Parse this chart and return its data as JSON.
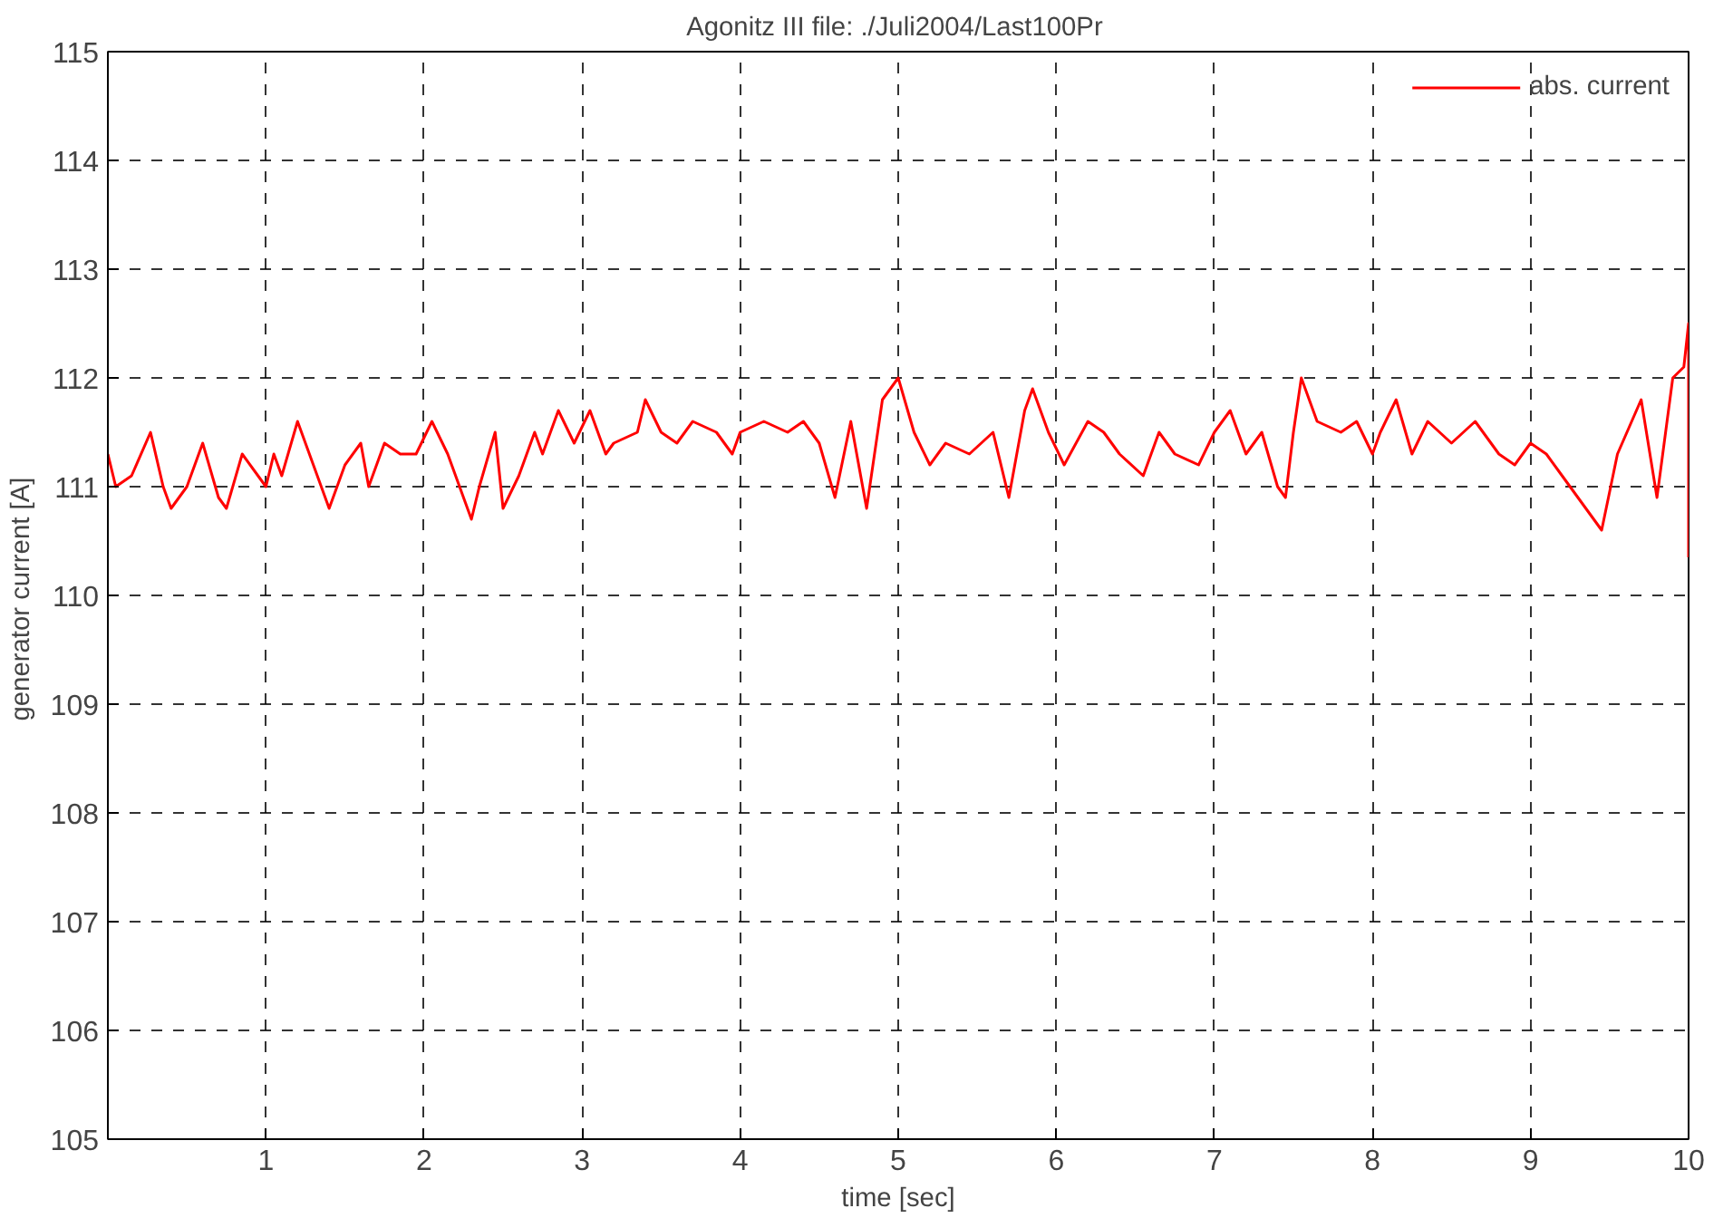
{
  "chart_data": {
    "type": "line",
    "title": "Agonitz III  file: ./Juli2004/Last100Pr",
    "xlabel": "time [sec]",
    "ylabel": "generator current  [A]",
    "xlim": [
      0,
      10
    ],
    "xticks": [
      1,
      2,
      3,
      4,
      5,
      6,
      7,
      8,
      9,
      10
    ],
    "ylim": [
      105,
      115
    ],
    "yticks": [
      105,
      106,
      107,
      108,
      109,
      110,
      111,
      112,
      113,
      114,
      115
    ],
    "grid": true,
    "legend": "top right",
    "line_style": "solid",
    "marker": "none",
    "series": [
      {
        "name": "abs. current",
        "color": "#ff0000",
        "x": [
          0,
          0.05,
          0.15,
          0.27,
          0.35,
          0.4,
          0.5,
          0.6,
          0.7,
          0.75,
          0.85,
          0.95,
          1.0,
          1.05,
          1.1,
          1.2,
          1.3,
          1.35,
          1.4,
          1.5,
          1.6,
          1.65,
          1.75,
          1.85,
          1.95,
          2.05,
          2.15,
          2.25,
          2.3,
          2.35,
          2.45,
          2.5,
          2.6,
          2.7,
          2.75,
          2.85,
          2.95,
          3.05,
          3.15,
          3.2,
          3.35,
          3.4,
          3.5,
          3.6,
          3.7,
          3.85,
          3.95,
          4.0,
          4.15,
          4.3,
          4.4,
          4.5,
          4.6,
          4.7,
          4.8,
          4.9,
          4.95,
          5.0,
          5.1,
          5.2,
          5.3,
          5.45,
          5.6,
          5.7,
          5.8,
          5.85,
          5.95,
          6.05,
          6.2,
          6.3,
          6.4,
          6.55,
          6.65,
          6.75,
          6.9,
          7.0,
          7.1,
          7.2,
          7.3,
          7.4,
          7.45,
          7.5,
          7.55,
          7.65,
          7.8,
          7.9,
          8.0,
          8.05,
          8.15,
          8.25,
          8.35,
          8.5,
          8.65,
          8.8,
          8.9,
          9.0,
          9.1,
          9.2,
          9.3,
          9.45,
          9.55,
          9.7,
          9.8,
          9.9,
          9.97,
          10.0,
          10.0
        ],
        "values": [
          111.3,
          111.0,
          111.1,
          111.5,
          111.0,
          110.8,
          111.0,
          111.4,
          110.9,
          110.8,
          111.3,
          111.1,
          111.0,
          111.3,
          111.1,
          111.6,
          111.2,
          111.0,
          110.8,
          111.2,
          111.4,
          111.0,
          111.4,
          111.3,
          111.3,
          111.6,
          111.3,
          110.9,
          110.7,
          111.0,
          111.5,
          110.8,
          111.1,
          111.5,
          111.3,
          111.7,
          111.4,
          111.7,
          111.3,
          111.4,
          111.5,
          111.8,
          111.5,
          111.4,
          111.6,
          111.5,
          111.3,
          111.5,
          111.6,
          111.5,
          111.6,
          111.4,
          110.9,
          111.6,
          110.8,
          111.8,
          111.9,
          112.0,
          111.5,
          111.2,
          111.4,
          111.3,
          111.5,
          110.9,
          111.7,
          111.9,
          111.5,
          111.2,
          111.6,
          111.5,
          111.3,
          111.1,
          111.5,
          111.3,
          111.2,
          111.5,
          111.7,
          111.3,
          111.5,
          111.0,
          110.9,
          111.5,
          112.0,
          111.6,
          111.5,
          111.6,
          111.3,
          111.5,
          111.8,
          111.3,
          111.6,
          111.4,
          111.6,
          111.3,
          111.2,
          111.4,
          111.3,
          111.1,
          110.9,
          110.6,
          111.3,
          111.8,
          110.9,
          112.0,
          112.1,
          112.5,
          110.35
        ]
      }
    ]
  }
}
